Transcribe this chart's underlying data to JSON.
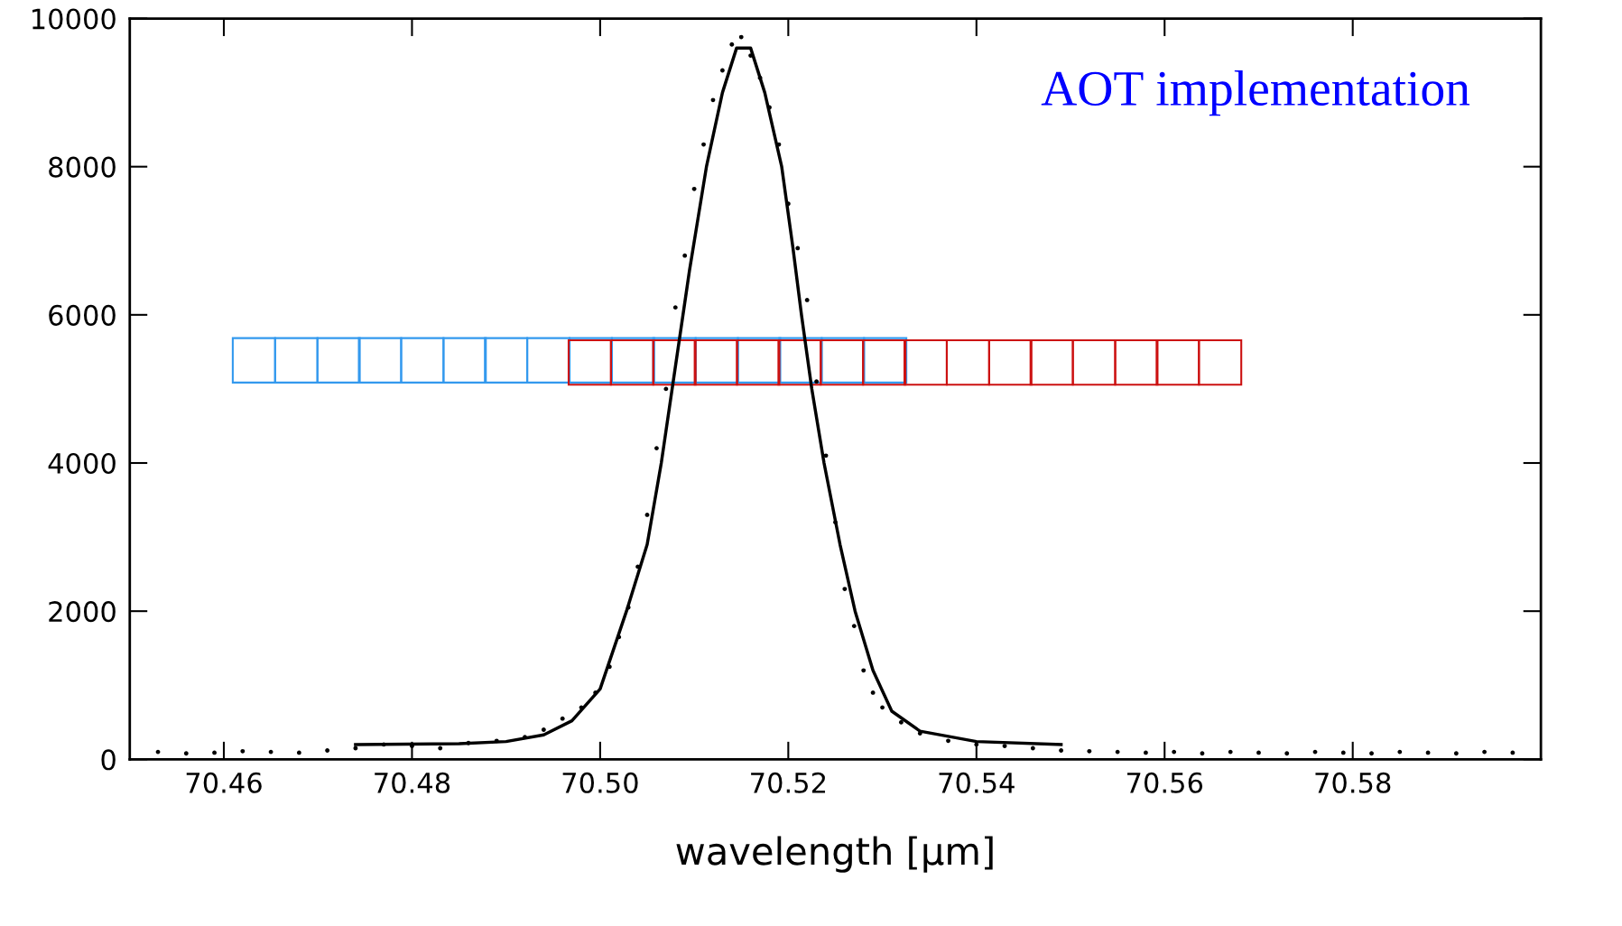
{
  "chart_data": {
    "type": "scatter",
    "xlabel": "wavelength [μm]",
    "annotations": [
      "AOT implementation"
    ],
    "xlim": [
      70.45,
      70.6
    ],
    "xticks": [
      {
        "value": 70.46,
        "label": "70.46"
      },
      {
        "value": 70.48,
        "label": "70.48"
      },
      {
        "value": 70.5,
        "label": "70.50"
      },
      {
        "value": 70.52,
        "label": "70.52"
      },
      {
        "value": 70.54,
        "label": "70.54"
      },
      {
        "value": 70.56,
        "label": "70.56"
      },
      {
        "value": 70.58,
        "label": "70.58"
      }
    ],
    "ylim": [
      0,
      10000
    ],
    "yticks": [
      0,
      2000,
      4000,
      6000,
      8000,
      10000
    ],
    "grid": false,
    "series": [
      {
        "color": "#000000",
        "marker": "circle",
        "x": [
          70.453,
          70.456,
          70.459,
          70.462,
          70.465,
          70.468,
          70.471,
          70.474,
          70.477,
          70.48,
          70.483,
          70.486,
          70.489,
          70.492,
          70.494,
          70.496,
          70.498,
          70.4995,
          70.501,
          70.502,
          70.503,
          70.504,
          70.505,
          70.506,
          70.507,
          70.508,
          70.509,
          70.51,
          70.511,
          70.512,
          70.513,
          70.514,
          70.515,
          70.516,
          70.517,
          70.518,
          70.519,
          70.52,
          70.521,
          70.522,
          70.523,
          70.524,
          70.525,
          70.526,
          70.527,
          70.528,
          70.529,
          70.53,
          70.532,
          70.534,
          70.537,
          70.54,
          70.543,
          70.546,
          70.549,
          70.552,
          70.555,
          70.558,
          70.561,
          70.564,
          70.567,
          70.57,
          70.573,
          70.576,
          70.579,
          70.582,
          70.585,
          70.588,
          70.591,
          70.594,
          70.597
        ],
        "values": [
          100,
          80,
          90,
          110,
          100,
          90,
          120,
          150,
          200,
          180,
          150,
          220,
          250,
          300,
          400,
          550,
          700,
          900,
          1250,
          1650,
          2050,
          2600,
          3300,
          4200,
          5000,
          6100,
          6800,
          7700,
          8300,
          8900,
          9300,
          9650,
          9750,
          9500,
          9200,
          8800,
          8300,
          7500,
          6900,
          6200,
          5100,
          4100,
          3200,
          2300,
          1800,
          1200,
          900,
          700,
          500,
          350,
          250,
          200,
          180,
          150,
          120,
          110,
          100,
          90,
          100,
          80,
          100,
          90,
          80,
          100,
          90,
          80,
          100,
          90,
          80,
          100,
          90
        ]
      },
      {
        "type": "line",
        "color": "#000000",
        "line_style": "solid",
        "x": [
          70.474,
          70.485,
          70.49,
          70.494,
          70.497,
          70.5,
          70.5028,
          70.505,
          70.5065,
          70.508,
          70.5095,
          70.5113,
          70.513,
          70.5145,
          70.516,
          70.5175,
          70.5193,
          70.5205,
          70.5214,
          70.5225,
          70.5238,
          70.5255,
          70.5271,
          70.529,
          70.531,
          70.534,
          70.54,
          70.549
        ],
        "values": [
          200,
          210,
          240,
          330,
          520,
          950,
          2000,
          2900,
          4000,
          5300,
          6600,
          8000,
          9000,
          9600,
          9600,
          9000,
          8000,
          6900,
          6000,
          5000,
          4000,
          2900,
          2000,
          1200,
          650,
          380,
          240,
          200
        ]
      },
      {
        "type": "bar",
        "color": "#3399ee",
        "base": [
          5086,
          5086,
          5086,
          5086,
          5086,
          5086,
          5086,
          5086,
          5086,
          5086,
          5086,
          5086,
          5086,
          5086,
          5086,
          5086
        ],
        "x": [
          70.4632,
          70.4677,
          70.4722,
          70.4766,
          70.4811,
          70.4856,
          70.49,
          70.4945,
          70.499,
          70.5035,
          70.5079,
          70.5124,
          70.5169,
          70.5213,
          70.5258,
          70.5303
        ],
        "values": [
          600,
          600,
          600,
          600,
          600,
          600,
          600,
          600,
          600,
          600,
          600,
          600,
          600,
          600,
          600,
          600
        ]
      },
      {
        "type": "bar",
        "color": "#cc1111",
        "base": [
          5057,
          5057,
          5057,
          5057,
          5057,
          5057,
          5057,
          5057,
          5057,
          5057,
          5057,
          5057,
          5057,
          5057,
          5057,
          5057
        ],
        "x": [
          70.4989,
          70.5034,
          70.5079,
          70.5123,
          70.5168,
          70.5212,
          70.5257,
          70.5302,
          70.5346,
          70.5391,
          70.5436,
          70.548,
          70.5525,
          70.557,
          70.5614,
          70.5659
        ],
        "values": [
          600,
          600,
          600,
          600,
          600,
          600,
          600,
          600,
          600,
          600,
          600,
          600,
          600,
          600,
          600,
          600
        ]
      }
    ]
  }
}
